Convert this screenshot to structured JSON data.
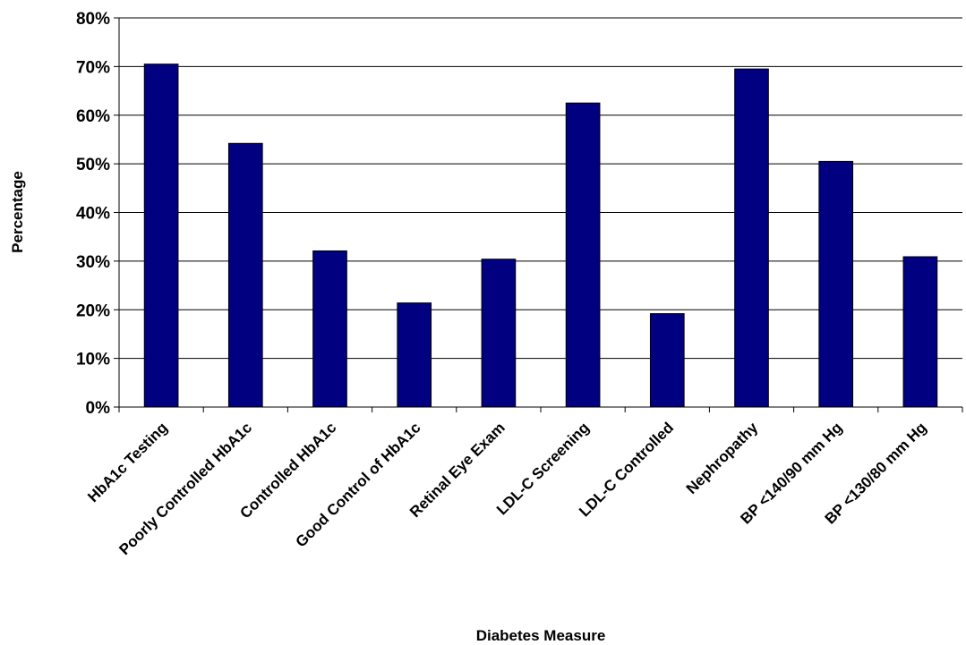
{
  "chart_data": {
    "type": "bar",
    "title": "",
    "xlabel": "Diabetes Measure",
    "ylabel": "Percentage",
    "ylim": [
      0,
      80
    ],
    "y_ticks": [
      "0%",
      "10%",
      "20%",
      "30%",
      "40%",
      "50%",
      "60%",
      "70%",
      "80%"
    ],
    "grid": true,
    "legend": "none",
    "bar_color": "#000080",
    "categories": [
      "HbA1c Testing",
      "Poorly Controlled HbA1c",
      "Controlled HbA1c",
      "Good Control of HbA1c",
      "Retinal Eye Exam",
      "LDL-C Screening",
      "LDL-C Controlled",
      "Nephropathy",
      "BP <140/90 mm Hg",
      "BP <130/80 mm Hg"
    ],
    "values": [
      70.5,
      54.2,
      32.1,
      21.4,
      30.4,
      62.5,
      19.2,
      69.5,
      50.5,
      30.9
    ]
  }
}
